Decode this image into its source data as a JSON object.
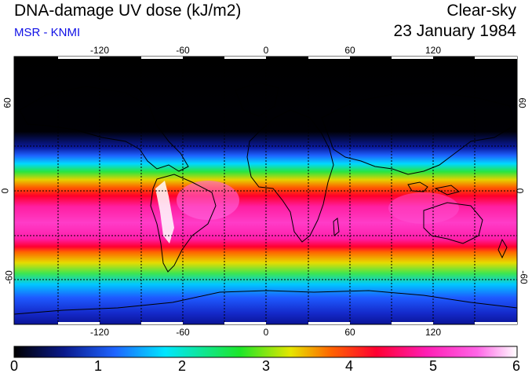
{
  "header": {
    "title": "DNA-damage UV dose (kJ/m2)",
    "subtitle": "MSR - KNMI",
    "condition": "Clear-sky",
    "date": "23 January 1984"
  },
  "map": {
    "lon_ticks": [
      "-120",
      "-60",
      "0",
      "60",
      "120"
    ],
    "lat_ticks": [
      "60",
      "0",
      "-60"
    ]
  },
  "colorbar": {
    "ticks": [
      "0",
      "1",
      "2",
      "3",
      "4",
      "5",
      "6"
    ],
    "colors": [
      "#000000",
      "#0a1a8c",
      "#1e64ff",
      "#00e6ff",
      "#1ee628",
      "#e6e600",
      "#ff6400",
      "#ff0032",
      "#ff1eb4",
      "#ff64e6",
      "#ffffff"
    ]
  }
}
